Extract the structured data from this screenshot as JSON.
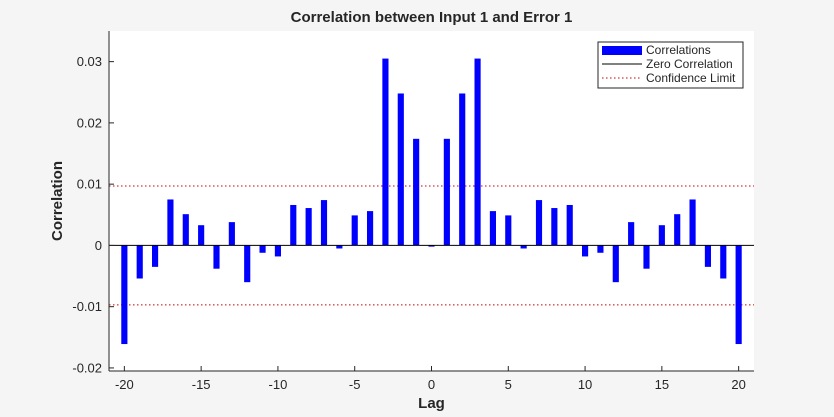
{
  "chart_data": {
    "type": "bar",
    "title": "Correlation between Input 1 and Error 1",
    "xlabel": "Lag",
    "ylabel": "Correlation",
    "xlim": [
      -21,
      21
    ],
    "ylim": [
      -0.0205,
      0.035
    ],
    "xticks": [
      -20,
      -15,
      -10,
      -5,
      0,
      5,
      10,
      15,
      20
    ],
    "yticks": [
      -0.02,
      -0.01,
      0,
      0.01,
      0.02,
      0.03
    ],
    "ytick_labels": [
      "-0.02",
      "-0.01",
      "0",
      "0.01",
      "0.02",
      "0.03"
    ],
    "grid": false,
    "legend_position": "top-right",
    "confidence_limit": 0.0097,
    "colors": {
      "bars": "#0000ff",
      "zero_line": "#000000",
      "confidence": "#cc0000",
      "axes_bg": "#ffffff",
      "figure_bg": "#f5f5f5"
    },
    "legend": [
      {
        "label": "Correlations",
        "kind": "bar"
      },
      {
        "label": "Zero Correlation",
        "kind": "solid"
      },
      {
        "label": "Confidence Limit",
        "kind": "dotted"
      }
    ],
    "lags": [
      -20,
      -19,
      -18,
      -17,
      -16,
      -15,
      -14,
      -13,
      -12,
      -11,
      -10,
      -9,
      -8,
      -7,
      -6,
      -5,
      -4,
      -3,
      -2,
      -1,
      0,
      1,
      2,
      3,
      4,
      5,
      6,
      7,
      8,
      9,
      10,
      11,
      12,
      13,
      14,
      15,
      16,
      17,
      18,
      19,
      20
    ],
    "values": [
      -0.0161,
      -0.0054,
      -0.0035,
      0.0075,
      0.0051,
      0.0033,
      -0.0038,
      0.0038,
      -0.006,
      -0.0012,
      -0.0018,
      0.0066,
      0.0061,
      0.0074,
      -0.0005,
      0.0049,
      0.0056,
      0.0305,
      0.0248,
      0.0174,
      -0.0002,
      0.0174,
      0.0248,
      0.0305,
      0.0056,
      0.0049,
      -0.0005,
      0.0074,
      0.0061,
      0.0066,
      -0.0018,
      -0.0012,
      -0.006,
      0.0038,
      -0.0038,
      0.0033,
      0.0051,
      0.0075,
      -0.0035,
      -0.0054,
      -0.0161
    ]
  }
}
